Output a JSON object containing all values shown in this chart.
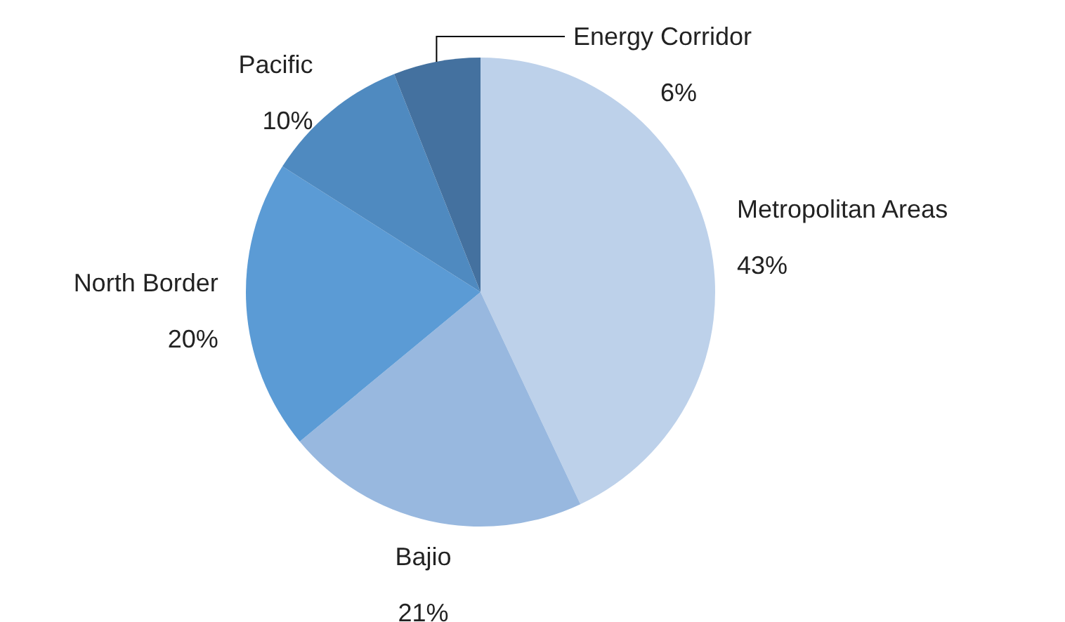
{
  "chart_data": {
    "type": "pie",
    "categories": [
      "Metropolitan Areas",
      "Bajio",
      "North Border",
      "Pacific",
      "Energy Corridor"
    ],
    "values": [
      43,
      21,
      20,
      10,
      6
    ],
    "value_labels": [
      "43%",
      "21%",
      "20%",
      "10%",
      "6%"
    ],
    "colors": [
      "#bdd1ea",
      "#98b8df",
      "#5b9bd5",
      "#4f8ac0",
      "#44719f"
    ],
    "legend": false
  }
}
